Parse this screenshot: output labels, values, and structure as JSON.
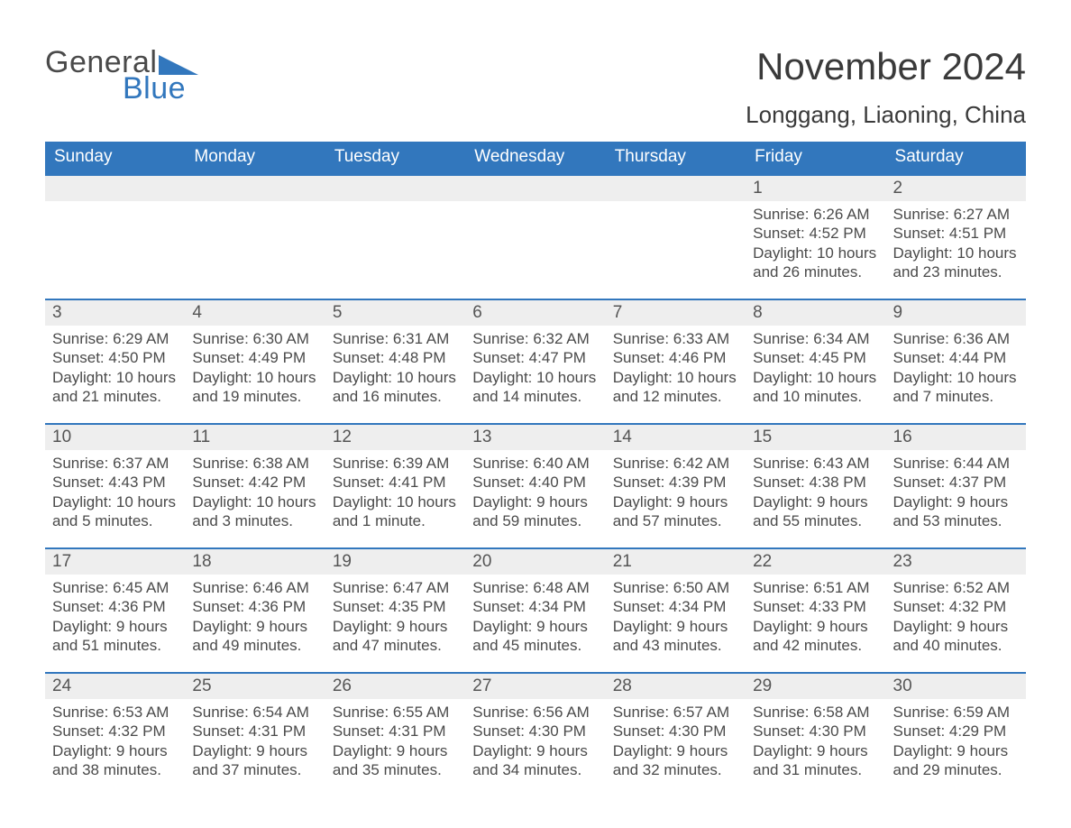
{
  "logo": {
    "general": "General",
    "blue": "Blue",
    "tri_color": "#3277bd"
  },
  "title": "November 2024",
  "location": "Longgang, Liaoning, China",
  "colors": {
    "header_bg": "#3277bd",
    "header_text": "#ffffff",
    "row_border": "#3277bd",
    "daynum_bg": "#eeeeee",
    "text": "#4a4a4a",
    "page_bg": "#ffffff"
  },
  "dow": [
    "Sunday",
    "Monday",
    "Tuesday",
    "Wednesday",
    "Thursday",
    "Friday",
    "Saturday"
  ],
  "weeks": [
    [
      {
        "n": "",
        "sunrise": "",
        "sunset": "",
        "d1": "",
        "d2": ""
      },
      {
        "n": "",
        "sunrise": "",
        "sunset": "",
        "d1": "",
        "d2": ""
      },
      {
        "n": "",
        "sunrise": "",
        "sunset": "",
        "d1": "",
        "d2": ""
      },
      {
        "n": "",
        "sunrise": "",
        "sunset": "",
        "d1": "",
        "d2": ""
      },
      {
        "n": "",
        "sunrise": "",
        "sunset": "",
        "d1": "",
        "d2": ""
      },
      {
        "n": "1",
        "sunrise": "Sunrise: 6:26 AM",
        "sunset": "Sunset: 4:52 PM",
        "d1": "Daylight: 10 hours",
        "d2": "and 26 minutes."
      },
      {
        "n": "2",
        "sunrise": "Sunrise: 6:27 AM",
        "sunset": "Sunset: 4:51 PM",
        "d1": "Daylight: 10 hours",
        "d2": "and 23 minutes."
      }
    ],
    [
      {
        "n": "3",
        "sunrise": "Sunrise: 6:29 AM",
        "sunset": "Sunset: 4:50 PM",
        "d1": "Daylight: 10 hours",
        "d2": "and 21 minutes."
      },
      {
        "n": "4",
        "sunrise": "Sunrise: 6:30 AM",
        "sunset": "Sunset: 4:49 PM",
        "d1": "Daylight: 10 hours",
        "d2": "and 19 minutes."
      },
      {
        "n": "5",
        "sunrise": "Sunrise: 6:31 AM",
        "sunset": "Sunset: 4:48 PM",
        "d1": "Daylight: 10 hours",
        "d2": "and 16 minutes."
      },
      {
        "n": "6",
        "sunrise": "Sunrise: 6:32 AM",
        "sunset": "Sunset: 4:47 PM",
        "d1": "Daylight: 10 hours",
        "d2": "and 14 minutes."
      },
      {
        "n": "7",
        "sunrise": "Sunrise: 6:33 AM",
        "sunset": "Sunset: 4:46 PM",
        "d1": "Daylight: 10 hours",
        "d2": "and 12 minutes."
      },
      {
        "n": "8",
        "sunrise": "Sunrise: 6:34 AM",
        "sunset": "Sunset: 4:45 PM",
        "d1": "Daylight: 10 hours",
        "d2": "and 10 minutes."
      },
      {
        "n": "9",
        "sunrise": "Sunrise: 6:36 AM",
        "sunset": "Sunset: 4:44 PM",
        "d1": "Daylight: 10 hours",
        "d2": "and 7 minutes."
      }
    ],
    [
      {
        "n": "10",
        "sunrise": "Sunrise: 6:37 AM",
        "sunset": "Sunset: 4:43 PM",
        "d1": "Daylight: 10 hours",
        "d2": "and 5 minutes."
      },
      {
        "n": "11",
        "sunrise": "Sunrise: 6:38 AM",
        "sunset": "Sunset: 4:42 PM",
        "d1": "Daylight: 10 hours",
        "d2": "and 3 minutes."
      },
      {
        "n": "12",
        "sunrise": "Sunrise: 6:39 AM",
        "sunset": "Sunset: 4:41 PM",
        "d1": "Daylight: 10 hours",
        "d2": "and 1 minute."
      },
      {
        "n": "13",
        "sunrise": "Sunrise: 6:40 AM",
        "sunset": "Sunset: 4:40 PM",
        "d1": "Daylight: 9 hours",
        "d2": "and 59 minutes."
      },
      {
        "n": "14",
        "sunrise": "Sunrise: 6:42 AM",
        "sunset": "Sunset: 4:39 PM",
        "d1": "Daylight: 9 hours",
        "d2": "and 57 minutes."
      },
      {
        "n": "15",
        "sunrise": "Sunrise: 6:43 AM",
        "sunset": "Sunset: 4:38 PM",
        "d1": "Daylight: 9 hours",
        "d2": "and 55 minutes."
      },
      {
        "n": "16",
        "sunrise": "Sunrise: 6:44 AM",
        "sunset": "Sunset: 4:37 PM",
        "d1": "Daylight: 9 hours",
        "d2": "and 53 minutes."
      }
    ],
    [
      {
        "n": "17",
        "sunrise": "Sunrise: 6:45 AM",
        "sunset": "Sunset: 4:36 PM",
        "d1": "Daylight: 9 hours",
        "d2": "and 51 minutes."
      },
      {
        "n": "18",
        "sunrise": "Sunrise: 6:46 AM",
        "sunset": "Sunset: 4:36 PM",
        "d1": "Daylight: 9 hours",
        "d2": "and 49 minutes."
      },
      {
        "n": "19",
        "sunrise": "Sunrise: 6:47 AM",
        "sunset": "Sunset: 4:35 PM",
        "d1": "Daylight: 9 hours",
        "d2": "and 47 minutes."
      },
      {
        "n": "20",
        "sunrise": "Sunrise: 6:48 AM",
        "sunset": "Sunset: 4:34 PM",
        "d1": "Daylight: 9 hours",
        "d2": "and 45 minutes."
      },
      {
        "n": "21",
        "sunrise": "Sunrise: 6:50 AM",
        "sunset": "Sunset: 4:34 PM",
        "d1": "Daylight: 9 hours",
        "d2": "and 43 minutes."
      },
      {
        "n": "22",
        "sunrise": "Sunrise: 6:51 AM",
        "sunset": "Sunset: 4:33 PM",
        "d1": "Daylight: 9 hours",
        "d2": "and 42 minutes."
      },
      {
        "n": "23",
        "sunrise": "Sunrise: 6:52 AM",
        "sunset": "Sunset: 4:32 PM",
        "d1": "Daylight: 9 hours",
        "d2": "and 40 minutes."
      }
    ],
    [
      {
        "n": "24",
        "sunrise": "Sunrise: 6:53 AM",
        "sunset": "Sunset: 4:32 PM",
        "d1": "Daylight: 9 hours",
        "d2": "and 38 minutes."
      },
      {
        "n": "25",
        "sunrise": "Sunrise: 6:54 AM",
        "sunset": "Sunset: 4:31 PM",
        "d1": "Daylight: 9 hours",
        "d2": "and 37 minutes."
      },
      {
        "n": "26",
        "sunrise": "Sunrise: 6:55 AM",
        "sunset": "Sunset: 4:31 PM",
        "d1": "Daylight: 9 hours",
        "d2": "and 35 minutes."
      },
      {
        "n": "27",
        "sunrise": "Sunrise: 6:56 AM",
        "sunset": "Sunset: 4:30 PM",
        "d1": "Daylight: 9 hours",
        "d2": "and 34 minutes."
      },
      {
        "n": "28",
        "sunrise": "Sunrise: 6:57 AM",
        "sunset": "Sunset: 4:30 PM",
        "d1": "Daylight: 9 hours",
        "d2": "and 32 minutes."
      },
      {
        "n": "29",
        "sunrise": "Sunrise: 6:58 AM",
        "sunset": "Sunset: 4:30 PM",
        "d1": "Daylight: 9 hours",
        "d2": "and 31 minutes."
      },
      {
        "n": "30",
        "sunrise": "Sunrise: 6:59 AM",
        "sunset": "Sunset: 4:29 PM",
        "d1": "Daylight: 9 hours",
        "d2": "and 29 minutes."
      }
    ]
  ]
}
